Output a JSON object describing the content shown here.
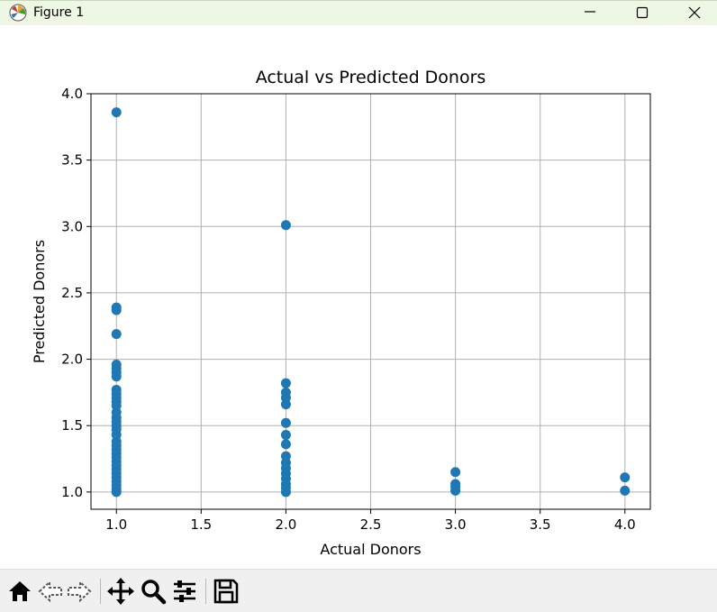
{
  "window": {
    "title": "Figure 1",
    "icons": [
      "matplotlib-logo-icon",
      "minimize-icon",
      "maximize-icon",
      "close-icon"
    ]
  },
  "toolbar": {
    "tools": [
      "home-icon",
      "back-arrow-icon",
      "forward-arrow-icon",
      "pan-move-icon",
      "zoom-magnifier-icon",
      "configure-subplots-icon",
      "save-floppy-icon"
    ]
  },
  "chart_data": {
    "type": "scatter",
    "title": "Actual vs Predicted Donors",
    "xlabel": "Actual Donors",
    "ylabel": "Predicted Donors",
    "xlim": [
      0.85,
      4.15
    ],
    "ylim": [
      0.87,
      4.0
    ],
    "xticks": [
      "1.0",
      "1.5",
      "2.0",
      "2.5",
      "3.0",
      "3.5",
      "4.0"
    ],
    "yticks": [
      "1.0",
      "1.5",
      "2.0",
      "2.5",
      "3.0",
      "3.5",
      "4.0"
    ],
    "grid": true,
    "marker_color": "#1f77b4",
    "points": [
      [
        1.0,
        3.86
      ],
      [
        1.0,
        2.39
      ],
      [
        1.0,
        2.37
      ],
      [
        1.0,
        2.19
      ],
      [
        1.0,
        1.96
      ],
      [
        1.0,
        1.93
      ],
      [
        1.0,
        1.9
      ],
      [
        1.0,
        1.87
      ],
      [
        1.0,
        1.77
      ],
      [
        1.0,
        1.74
      ],
      [
        1.0,
        1.71
      ],
      [
        1.0,
        1.68
      ],
      [
        1.0,
        1.65
      ],
      [
        1.0,
        1.6
      ],
      [
        1.0,
        1.56
      ],
      [
        1.0,
        1.53
      ],
      [
        1.0,
        1.5
      ],
      [
        1.0,
        1.47
      ],
      [
        1.0,
        1.43
      ],
      [
        1.0,
        1.38
      ],
      [
        1.0,
        1.35
      ],
      [
        1.0,
        1.32
      ],
      [
        1.0,
        1.29
      ],
      [
        1.0,
        1.26
      ],
      [
        1.0,
        1.23
      ],
      [
        1.0,
        1.2
      ],
      [
        1.0,
        1.17
      ],
      [
        1.0,
        1.14
      ],
      [
        1.0,
        1.11
      ],
      [
        1.0,
        1.08
      ],
      [
        1.0,
        1.05
      ],
      [
        1.0,
        1.02
      ],
      [
        1.0,
        1.0
      ],
      [
        2.0,
        3.01
      ],
      [
        2.0,
        1.82
      ],
      [
        2.0,
        1.75
      ],
      [
        2.0,
        1.71
      ],
      [
        2.0,
        1.66
      ],
      [
        2.0,
        1.52
      ],
      [
        2.0,
        1.43
      ],
      [
        2.0,
        1.36
      ],
      [
        2.0,
        1.27
      ],
      [
        2.0,
        1.22
      ],
      [
        2.0,
        1.18
      ],
      [
        2.0,
        1.14
      ],
      [
        2.0,
        1.1
      ],
      [
        2.0,
        1.06
      ],
      [
        2.0,
        1.03
      ],
      [
        2.0,
        1.0
      ],
      [
        3.0,
        1.15
      ],
      [
        3.0,
        1.06
      ],
      [
        3.0,
        1.04
      ],
      [
        3.0,
        1.01
      ],
      [
        4.0,
        1.11
      ],
      [
        4.0,
        1.01
      ]
    ]
  }
}
